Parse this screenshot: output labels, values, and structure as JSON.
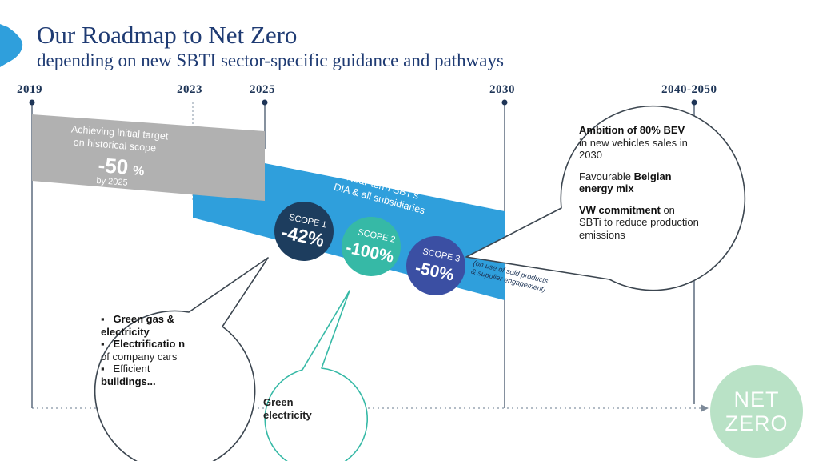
{
  "title": "Our Roadmap to Net Zero",
  "subtitle": "depending on new SBTI sector-specific guidance and pathways",
  "years": [
    "2019",
    "2023",
    "2025",
    "2030",
    "2040-2050"
  ],
  "grey_band": {
    "line1": "Achieving initial target",
    "line2": "on historical scope",
    "value": "-50",
    "unit": "%",
    "note": "by 2025",
    "color": "#b1b1b1"
  },
  "blue_band": {
    "line1": "Near-term SBT's",
    "line2": "DIA & all subsidiaries",
    "color": "#2f9fdc"
  },
  "scopes": [
    {
      "label": "SCOPE 1",
      "value": "-42%",
      "color": "#1d3d5e"
    },
    {
      "label": "SCOPE 2",
      "value": "-100%",
      "color": "#36b9a6"
    },
    {
      "label": "SCOPE 3",
      "value": "-50%",
      "color": "#3b4fa3"
    }
  ],
  "scope3_note": {
    "line1": "(on use of sold products",
    "line2": "& supplier engagement)"
  },
  "right_bubble": {
    "p1_bold": "Ambition of 80% BEV",
    "p1_rest": "in new vehicles sales in 2030",
    "p2_plain": "Favourable ",
    "p2_bold": "Belgian energy mix",
    "p3_bold": "VW commitment",
    "p3_rest": " on SBTi to reduce production emissions"
  },
  "left_bubble": {
    "item1": "Green gas & electricity",
    "item2_bold": "Electrificatio n",
    "item2_rest": " of company cars",
    "item3_plain": "Efficient ",
    "item3_bold": "buildings..."
  },
  "green_bubble": {
    "line1": "Green",
    "line2": "electricity"
  },
  "net_zero": {
    "line1": "NET",
    "line2": "ZERO"
  }
}
